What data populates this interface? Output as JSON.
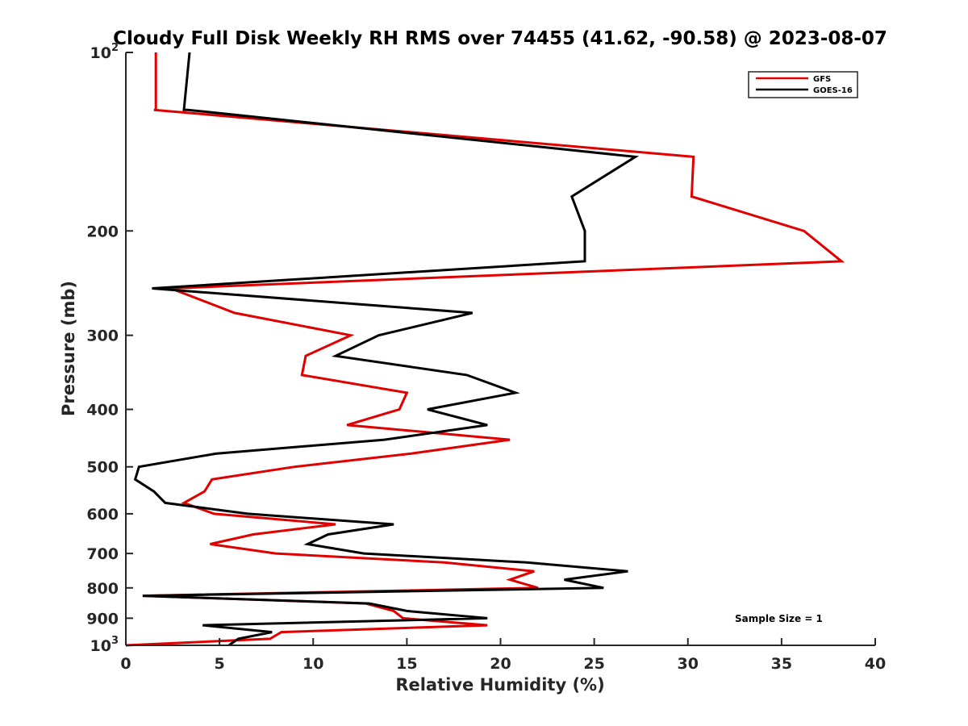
{
  "chart_data": {
    "type": "line",
    "title": "Cloudy Full Disk Weekly RH RMS over 74455 (41.62, -90.58) @ 2023-08-07",
    "xlabel": "Relative Humidity (%)",
    "ylabel": "Pressure (mb)",
    "xlim": [
      0,
      40
    ],
    "ylim": [
      100,
      1000
    ],
    "y_scale": "log",
    "y_reversed": true,
    "grid": false,
    "legend_position": "top-right",
    "x_ticks": [
      "0",
      "5",
      "10",
      "15",
      "20",
      "25",
      "30",
      "35",
      "40"
    ],
    "x_tick_values": [
      0,
      5,
      10,
      15,
      20,
      25,
      30,
      35,
      40
    ],
    "y_ticks": [
      {
        "value": 100,
        "base": "10",
        "exp": "2"
      },
      {
        "value": 200,
        "label": "200"
      },
      {
        "value": 300,
        "label": "300"
      },
      {
        "value": 400,
        "label": "400"
      },
      {
        "value": 500,
        "label": "500"
      },
      {
        "value": 600,
        "label": "600"
      },
      {
        "value": 700,
        "label": "700"
      },
      {
        "value": 800,
        "label": "800"
      },
      {
        "value": 900,
        "label": "900"
      },
      {
        "value": 1000,
        "base": "10",
        "exp": "3"
      }
    ],
    "annotation": "Sample Size = 1",
    "series": [
      {
        "name": "GFS",
        "color": "#e00000",
        "points": [
          [
            1.6,
            100
          ],
          [
            1.6,
            125
          ],
          [
            1.5,
            125
          ],
          [
            30.3,
            150
          ],
          [
            30.2,
            175
          ],
          [
            36.2,
            200
          ],
          [
            38.2,
            225
          ],
          [
            2.4,
            250
          ],
          [
            5.8,
            275
          ],
          [
            12,
            300
          ],
          [
            9.6,
            325
          ],
          [
            9.4,
            350
          ],
          [
            15,
            375
          ],
          [
            14.6,
            400
          ],
          [
            11.8,
            425
          ],
          [
            20.5,
            450
          ],
          [
            15.2,
            475
          ],
          [
            9,
            500
          ],
          [
            4.6,
            525
          ],
          [
            4.2,
            550
          ],
          [
            3.1,
            575
          ],
          [
            4.7,
            600
          ],
          [
            11.2,
            625
          ],
          [
            6.8,
            650
          ],
          [
            4.5,
            675
          ],
          [
            8,
            700
          ],
          [
            17,
            725
          ],
          [
            21.8,
            750
          ],
          [
            20.5,
            775
          ],
          [
            22,
            800
          ],
          [
            0.9,
            825
          ],
          [
            12.8,
            850
          ],
          [
            14.3,
            875
          ],
          [
            14.8,
            900
          ],
          [
            19.3,
            925
          ],
          [
            8.3,
            950
          ],
          [
            7.7,
            975
          ],
          [
            0,
            1000
          ]
        ]
      },
      {
        "name": "GOES-16",
        "color": "#000000",
        "points": [
          [
            3.4,
            100
          ],
          [
            3.1,
            125
          ],
          [
            3.3,
            125
          ],
          [
            27.2,
            150
          ],
          [
            23.8,
            175
          ],
          [
            24.5,
            200
          ],
          [
            24.5,
            225
          ],
          [
            1.4,
            250
          ],
          [
            18.5,
            275
          ],
          [
            13.5,
            300
          ],
          [
            11.2,
            325
          ],
          [
            18.2,
            350
          ],
          [
            20.8,
            375
          ],
          [
            16.1,
            400
          ],
          [
            19.3,
            425
          ],
          [
            13.8,
            450
          ],
          [
            4.8,
            475
          ],
          [
            0.7,
            500
          ],
          [
            0.5,
            525
          ],
          [
            1.5,
            550
          ],
          [
            2.1,
            575
          ],
          [
            6.5,
            600
          ],
          [
            14.3,
            625
          ],
          [
            10.8,
            650
          ],
          [
            9.7,
            675
          ],
          [
            12.7,
            700
          ],
          [
            21.4,
            725
          ],
          [
            26.8,
            750
          ],
          [
            23.4,
            775
          ],
          [
            25.5,
            800
          ],
          [
            0.9,
            825
          ],
          [
            13,
            850
          ],
          [
            15,
            875
          ],
          [
            19.3,
            900
          ],
          [
            4.1,
            925
          ],
          [
            7.8,
            950
          ],
          [
            6,
            975
          ],
          [
            5.5,
            1000
          ]
        ]
      }
    ]
  }
}
